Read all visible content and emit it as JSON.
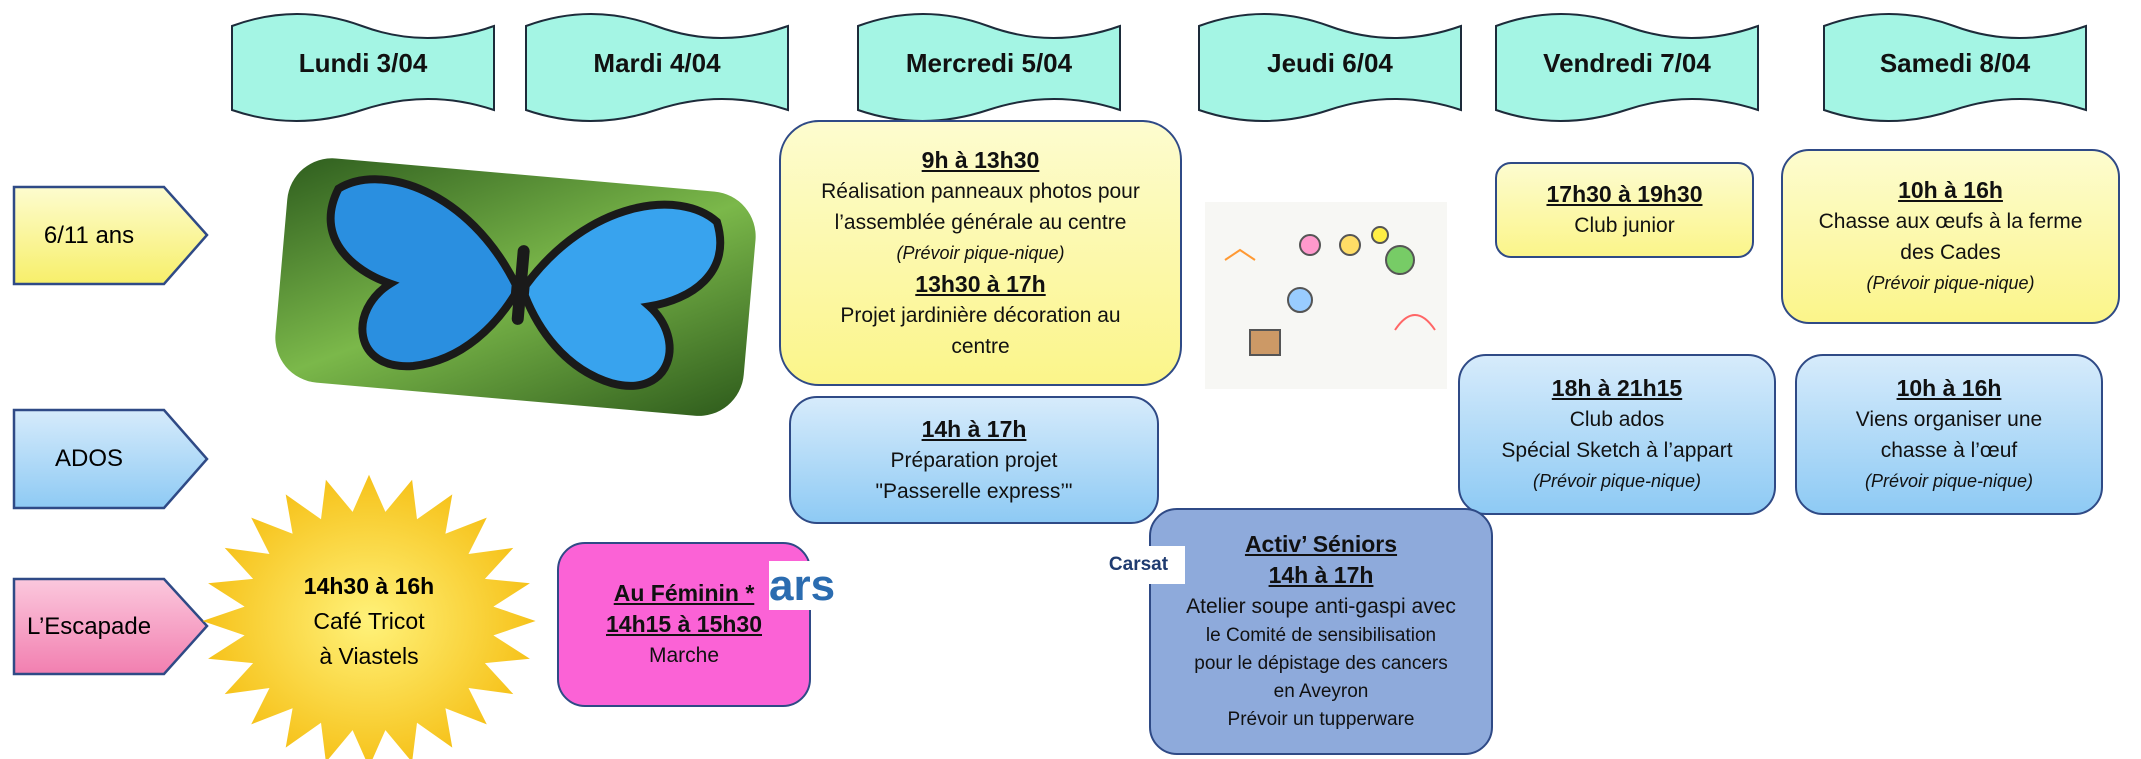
{
  "days": [
    "Lundi 3/04",
    "Mardi 4/04",
    "Mercredi 5/04",
    "Jeudi 6/04",
    "Vendredi 7/04",
    "Samedi 8/04"
  ],
  "groups": [
    "6/11 ans",
    "ADOS",
    "L’Escapade"
  ],
  "events": {
    "wed_kids": [
      "9h à 13h30",
      "Réalisation panneaux photos pour",
      "l’assemblée générale au centre",
      "(Prévoir pique-nique)",
      "13h30 à 17h",
      "Projet jardinière décoration au",
      "centre"
    ],
    "wed_ados": [
      "14h à 17h",
      "Préparation projet",
      "\"Passerelle express’\""
    ],
    "fri_kids": [
      "17h30 à 19h30",
      "Club junior"
    ],
    "sat_kids": [
      "10h à 16h",
      "Chasse aux œufs à la ferme",
      "des Cades",
      "(Prévoir pique-nique)"
    ],
    "fri_ados": [
      "18h à 21h15",
      "Club ados",
      "Spécial Sketch à l’appart",
      "(Prévoir pique-nique)"
    ],
    "sat_ados": [
      "10h à 16h",
      "Viens organiser une",
      "chasse à l’œuf",
      "(Prévoir pique-nique)"
    ],
    "mon_escapade": [
      "14h30 à 16h",
      "Café Tricot",
      "à Viastels"
    ],
    "tue_escapade": [
      "Au Féminin *",
      "14h15 à 15h30",
      "Marche"
    ],
    "thu_escapade": [
      "Activ’ Séniors",
      "14h à 17h",
      "Atelier soupe anti-gaspi avec",
      "le Comité de sensibilisation",
      "pour le dépistage des cancers",
      "en Aveyron",
      "Prévoir un tupperware"
    ]
  },
  "logos": [
    "ars",
    "Carsat"
  ]
}
